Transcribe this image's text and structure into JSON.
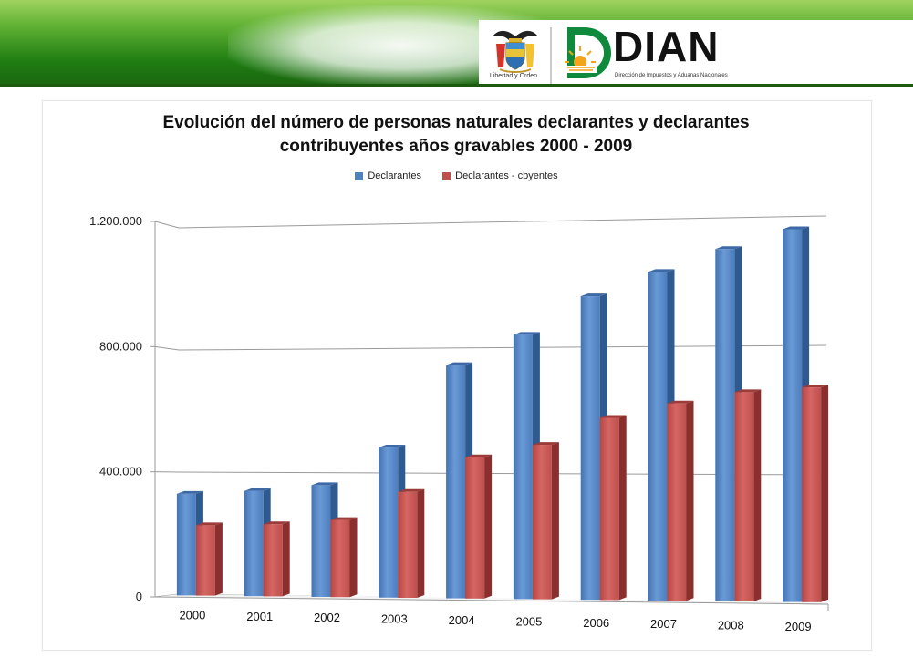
{
  "header": {
    "crest_caption": "Libertad y Orden",
    "logo_text": "DIAN",
    "logo_subtitle": "Dirección de Impuestos y Aduanas Nacionales"
  },
  "colors": {
    "series_1": "#4f81bd",
    "series_2": "#c0504d"
  },
  "chart_data": {
    "type": "bar",
    "title_line1": "Evolución del número de personas naturales declarantes y declarantes",
    "title_line2": "contribuyentes  años gravables  2000 - 2009",
    "categories": [
      "2000",
      "2001",
      "2002",
      "2003",
      "2004",
      "2005",
      "2006",
      "2007",
      "2008",
      "2009"
    ],
    "series": [
      {
        "name": "Declarantes",
        "values": [
          330000,
          340000,
          360000,
          480000,
          740000,
          835000,
          955000,
          1030000,
          1100000,
          1160000
        ]
      },
      {
        "name": "Declarantes - cbyentes",
        "values": [
          230000,
          235000,
          250000,
          340000,
          450000,
          490000,
          575000,
          620000,
          655000,
          670000
        ]
      }
    ],
    "yticks": [
      "0",
      "400.000",
      "800.000",
      "1.200.000"
    ],
    "ylim": [
      0,
      1200000
    ],
    "grid": true,
    "legend_position": "top",
    "style": "3d-column"
  }
}
